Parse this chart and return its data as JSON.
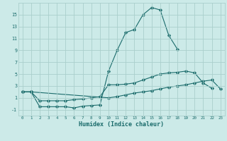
{
  "xlabel": "Humidex (Indice chaleur)",
  "background_color": "#cceae8",
  "grid_color": "#aacfcc",
  "line_color": "#1a6b6b",
  "x_values": [
    0,
    1,
    2,
    3,
    4,
    5,
    6,
    7,
    8,
    9,
    10,
    11,
    12,
    13,
    14,
    15,
    16,
    17,
    18,
    19,
    20,
    21,
    22,
    23
  ],
  "line1_x": [
    0,
    1,
    2,
    3,
    4,
    5,
    6,
    7,
    8,
    9,
    10,
    11,
    12,
    13,
    14,
    15,
    16,
    17,
    18
  ],
  "line1_y": [
    2,
    2,
    -0.5,
    -0.5,
    -0.5,
    -0.5,
    -0.7,
    -0.4,
    -0.3,
    -0.2,
    5.5,
    9.0,
    12.0,
    12.5,
    15.0,
    16.2,
    15.8,
    11.5,
    9.2
  ],
  "line2_x": [
    0,
    1,
    2,
    3,
    4,
    5,
    6,
    7,
    8,
    9,
    10,
    11,
    12,
    13,
    14,
    15,
    16,
    17,
    18,
    19,
    20,
    21,
    22
  ],
  "line2_y": [
    2,
    2,
    0.5,
    0.5,
    0.5,
    0.5,
    0.7,
    0.8,
    1.0,
    1.2,
    3.2,
    3.2,
    3.3,
    3.5,
    4.0,
    4.5,
    5.0,
    5.2,
    5.3,
    5.5,
    5.2,
    3.5,
    2.6
  ],
  "line3_x": [
    0,
    1,
    10,
    11,
    12,
    13,
    14,
    15,
    16,
    17,
    18,
    19,
    20,
    21,
    22,
    23
  ],
  "line3_y": [
    2,
    2,
    1.0,
    1.2,
    1.5,
    1.8,
    2.0,
    2.2,
    2.5,
    2.8,
    3.0,
    3.2,
    3.5,
    3.8,
    4.0,
    2.5
  ],
  "ylim": [
    -2,
    17
  ],
  "xlim": [
    -0.5,
    23.5
  ],
  "yticks": [
    -1,
    1,
    3,
    5,
    7,
    9,
    11,
    13,
    15
  ],
  "xticks": [
    0,
    1,
    2,
    3,
    4,
    5,
    6,
    7,
    8,
    9,
    10,
    11,
    12,
    13,
    14,
    15,
    16,
    17,
    18,
    19,
    20,
    21,
    22,
    23
  ]
}
